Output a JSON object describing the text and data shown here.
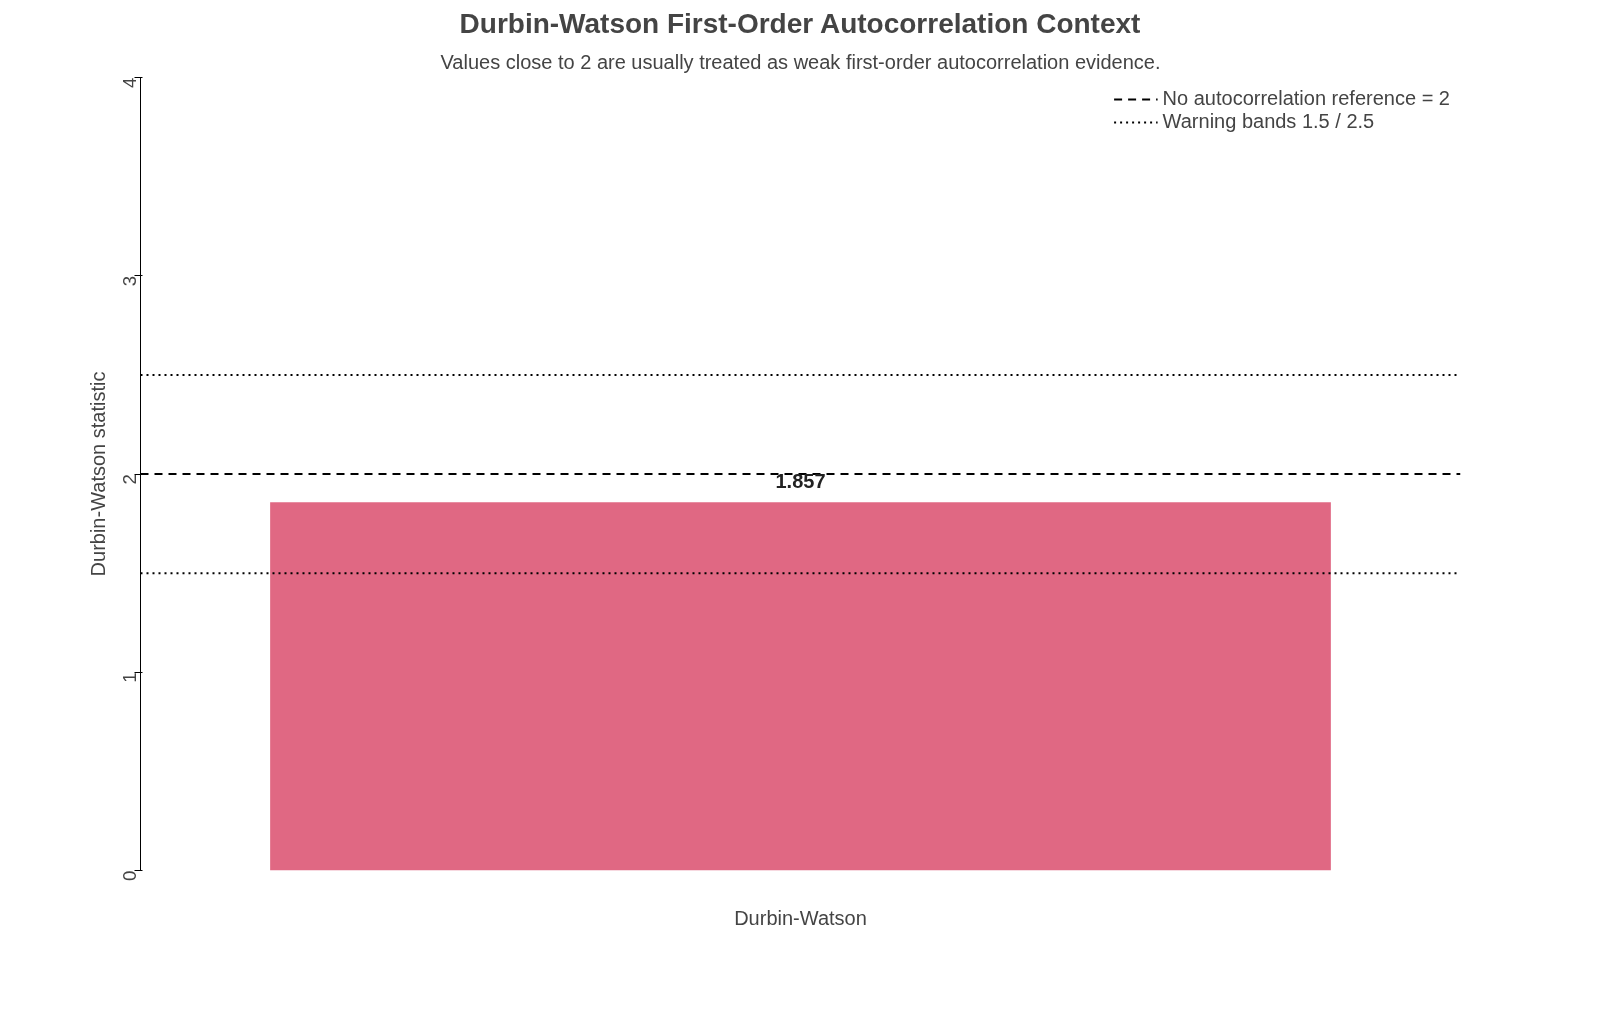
{
  "chart_data": {
    "type": "bar",
    "title": "Durbin-Watson First-Order Autocorrelation Context",
    "subtitle": "Values close to 2 are usually treated as weak first-order autocorrelation evidence.",
    "ylabel": "Durbin-Watson statistic",
    "categories": [
      "Durbin-Watson"
    ],
    "values": [
      1.857
    ],
    "color": "#e06883",
    "data_labels": true,
    "ylim": [
      0,
      4
    ],
    "yticks": [
      0,
      1,
      2,
      3,
      4
    ],
    "grid": false,
    "legend": "top right",
    "ref_lines": [
      {
        "axis": "y",
        "value": 2,
        "label": "No autocorrelation reference = 2",
        "line_style": "dashed"
      },
      {
        "axis": "y",
        "value": 1.5,
        "label": "Warning bands 1.5 / 2.5",
        "line_style": "dotted"
      },
      {
        "axis": "y",
        "value": 2.5,
        "label": null,
        "line_style": "dotted"
      }
    ]
  }
}
